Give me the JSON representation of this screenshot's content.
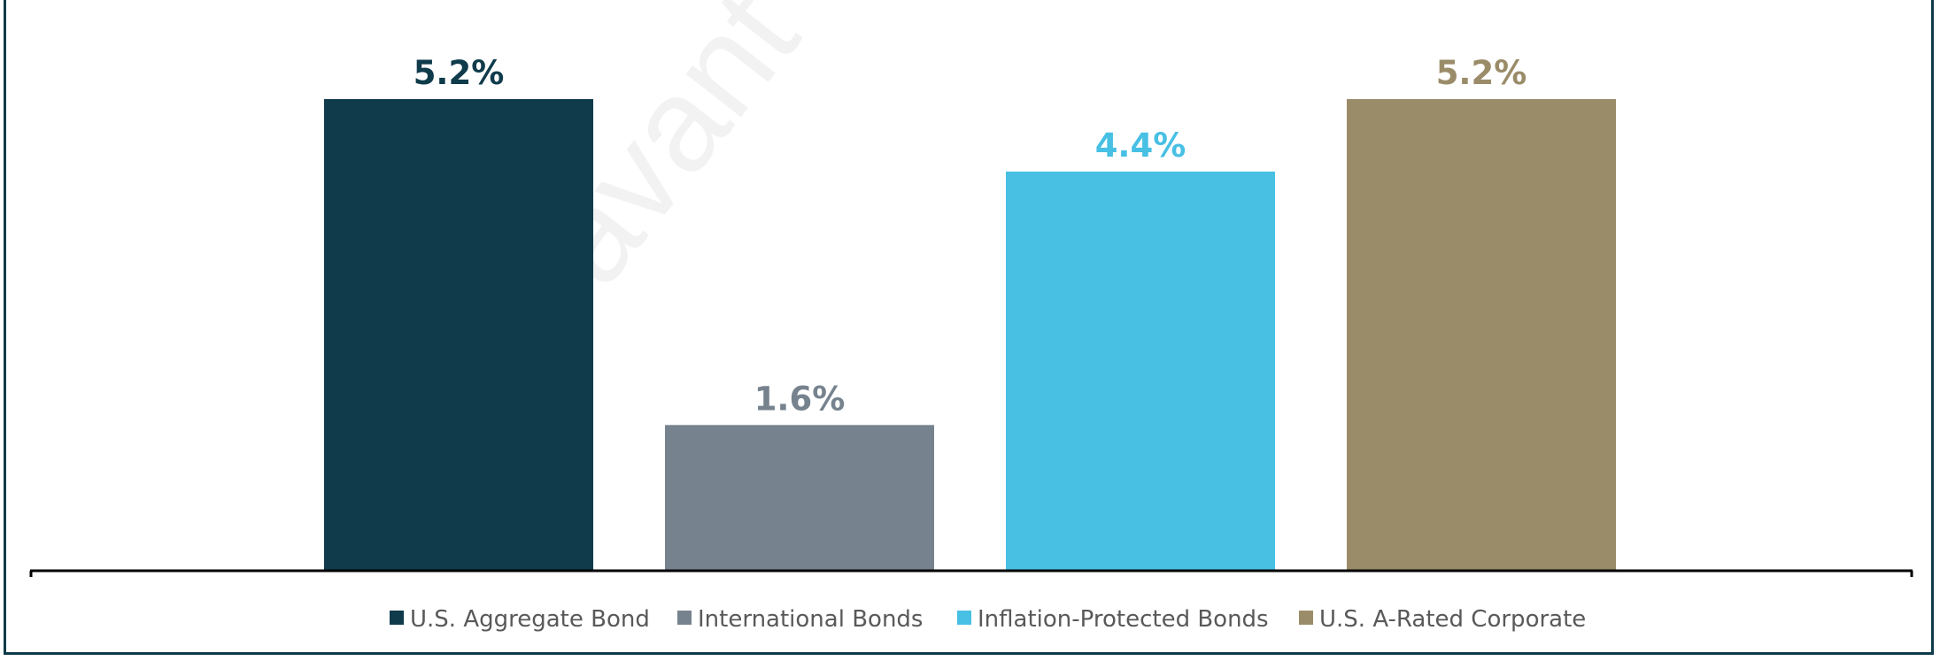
{
  "watermark": "Savant Capital",
  "chart_data": {
    "type": "bar",
    "title": "",
    "xlabel": "",
    "ylabel": "",
    "ylim": [
      0,
      5.4
    ],
    "grid": false,
    "legend_position": "bottom",
    "categories": [
      "U.S. Aggregate Bond",
      "International Bonds",
      "Inflation-Protected Bonds",
      "U.S. A-Rated Corporate"
    ],
    "values": [
      5.2,
      1.6,
      4.4,
      5.2
    ],
    "data_labels": [
      "5.2%",
      "1.6%",
      "4.4%",
      "5.2%"
    ],
    "colors": [
      "#0f3b4b",
      "#76838e",
      "#47c0e4",
      "#9b8c69"
    ],
    "label_colors": [
      "#0f3b4b",
      "#76838e",
      "#47c0e4",
      "#9b8c69"
    ],
    "legend": [
      "U.S. Aggregate Bond",
      "International Bonds",
      "Inflation-Protected Bonds",
      "U.S. A-Rated Corporate"
    ]
  }
}
